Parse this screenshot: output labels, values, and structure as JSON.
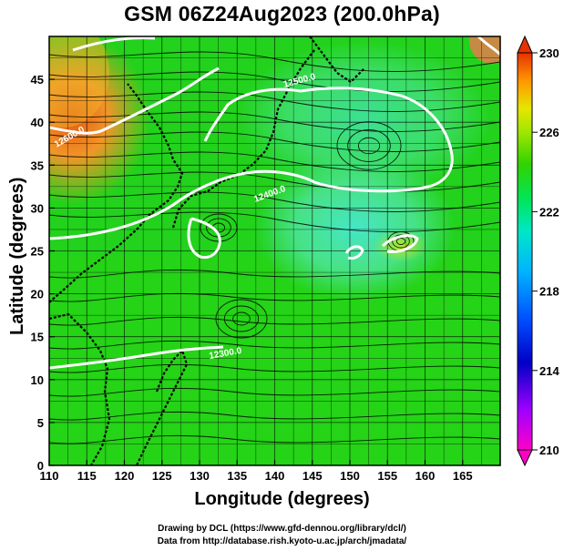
{
  "title": "GSM 06Z24Aug2023 (200.0hPa)",
  "xaxis": {
    "label": "Longitude (degrees)",
    "range": [
      110,
      170
    ],
    "ticks": [
      "110",
      "115",
      "120",
      "125",
      "130",
      "135",
      "140",
      "145",
      "150",
      "155",
      "160",
      "165"
    ]
  },
  "yaxis": {
    "label": "Latitude (degrees)",
    "range": [
      0,
      50
    ],
    "ticks": [
      "0",
      "5",
      "10",
      "15",
      "20",
      "25",
      "30",
      "35",
      "40",
      "45"
    ]
  },
  "colorbar": {
    "range": [
      210,
      230
    ],
    "ticks": [
      "210",
      "214",
      "218",
      "222",
      "226",
      "230"
    ],
    "colors": [
      "#ff00c8",
      "#a000ff",
      "#0000c8",
      "#0050ff",
      "#00b4ff",
      "#00e6c8",
      "#00e65a",
      "#32d200",
      "#a0e600",
      "#e6e600",
      "#ff9600",
      "#e63200"
    ]
  },
  "contour_labels": [
    "12600.0",
    "12500.0",
    "12400.0",
    "12300.0"
  ],
  "credits": {
    "line1": "Drawing by DCL (https://www.gfd-dennou.org/library/dcl/)",
    "line2": "Data from http://database.rish.kyoto-u.ac.jp/arch/jmadata/"
  },
  "colors": {
    "background_field": "#22d21c",
    "warm_patch": "#e67a14",
    "cool_patch": "#3ce6b4",
    "contour": "#ffffff",
    "streamline": "#000000",
    "grid": "#000000"
  }
}
